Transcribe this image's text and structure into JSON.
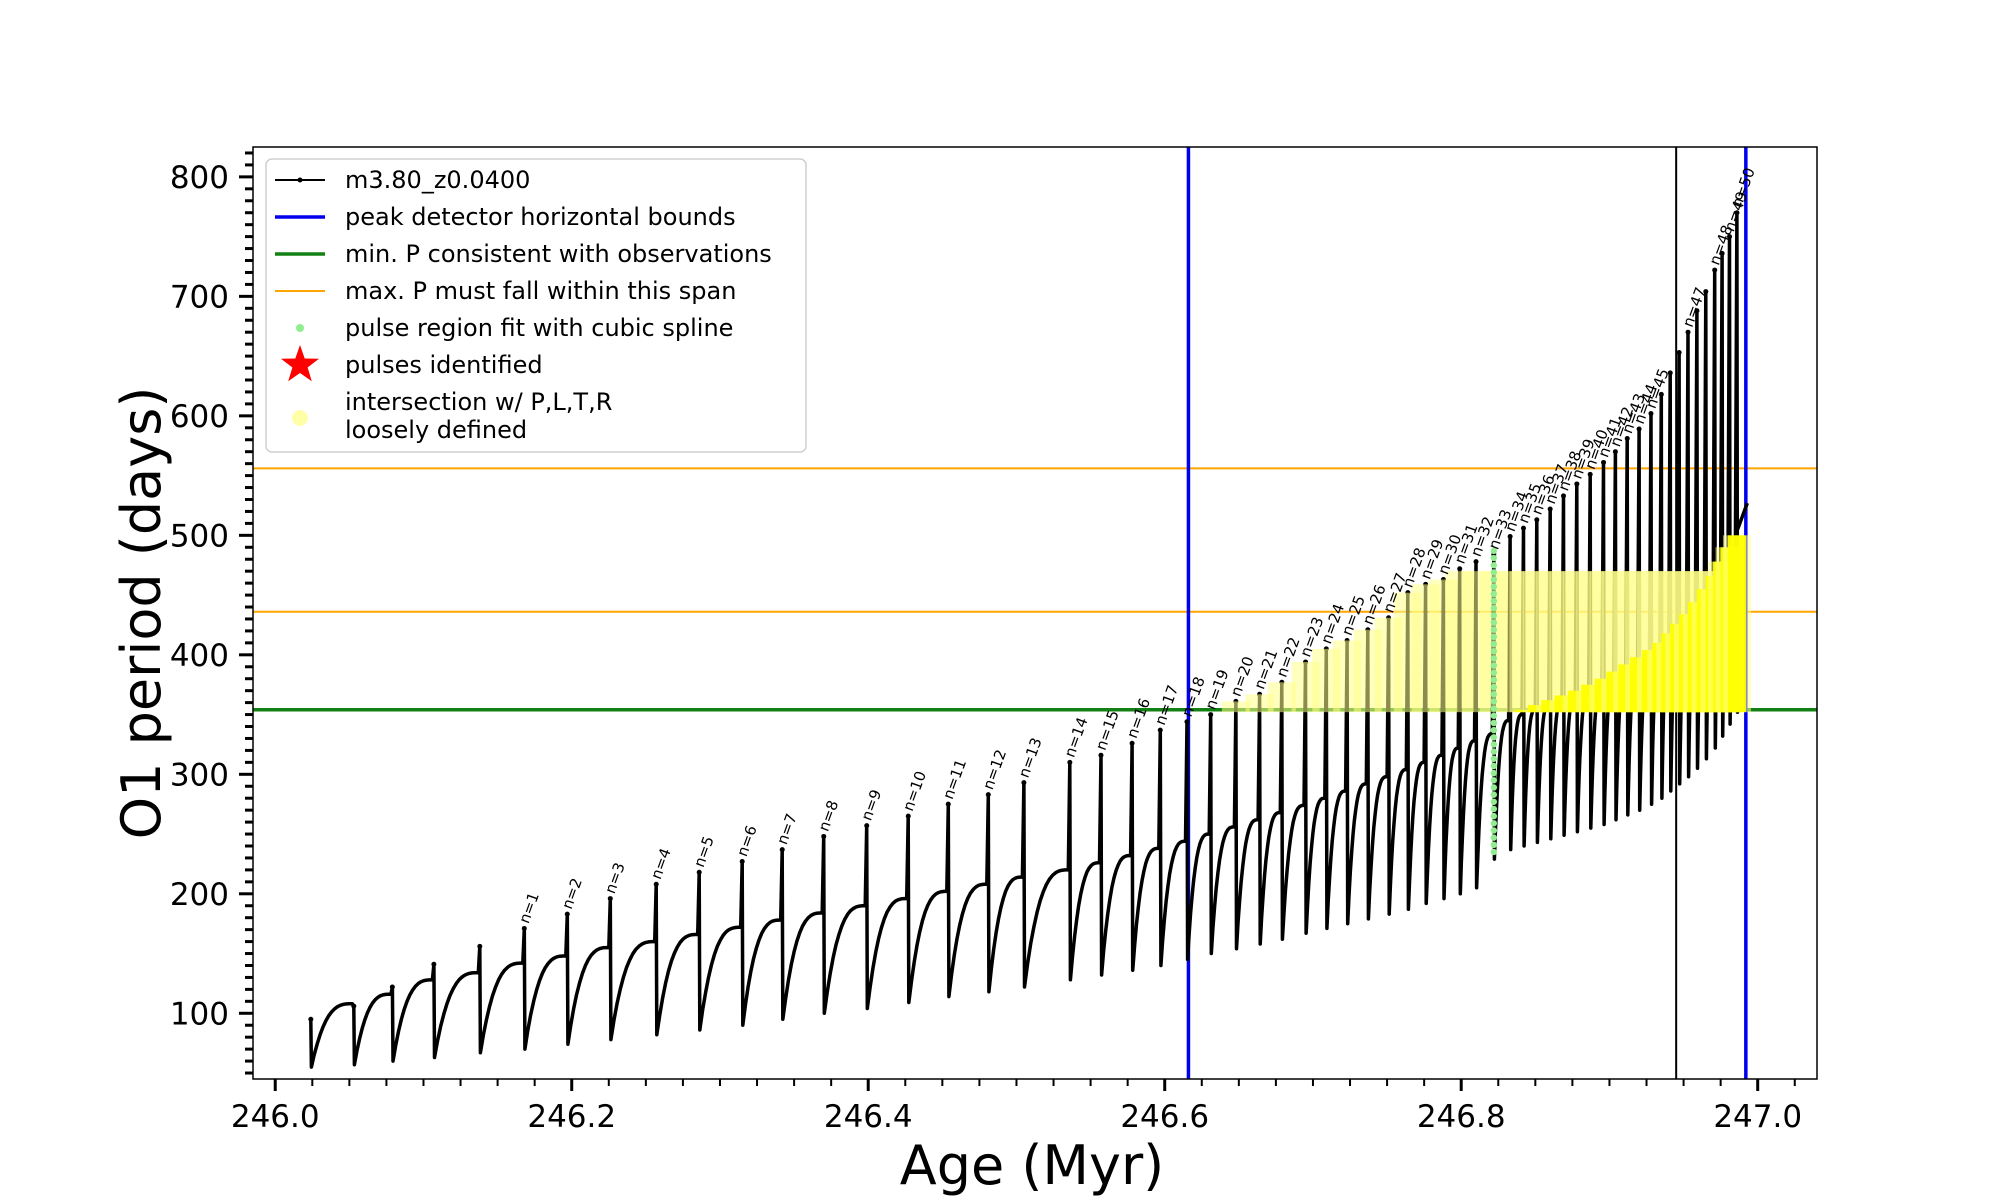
{
  "chart_data": {
    "type": "line",
    "title": "",
    "xlabel": "Age (Myr)",
    "ylabel": "O1 period (days)",
    "xlim": [
      245.985,
      247.04
    ],
    "ylim": [
      45,
      825
    ],
    "x_ticks": [
      246.0,
      246.2,
      246.4,
      246.6,
      246.8,
      247.0
    ],
    "x_tick_labels": [
      "246.0",
      "246.2",
      "246.4",
      "246.6",
      "246.8",
      "247.0"
    ],
    "y_ticks": [
      100,
      200,
      300,
      400,
      500,
      600,
      700,
      800
    ],
    "y_tick_labels": [
      "100",
      "200",
      "300",
      "400",
      "500",
      "600",
      "700",
      "800"
    ],
    "grid": false,
    "legend_position": "top-left",
    "legend": [
      {
        "label": "m3.80_z0.0400",
        "kind": "line-marker",
        "color": "#000000"
      },
      {
        "label": "peak detector horizontal bounds",
        "kind": "line",
        "color": "#0000ee"
      },
      {
        "label": "min. P consistent with observations",
        "kind": "line",
        "color": "#128012"
      },
      {
        "label": "max. P must fall within this span",
        "kind": "line",
        "color": "#ffa500"
      },
      {
        "label": "pulse region fit with cubic spline",
        "kind": "dot",
        "color": "#90ee90"
      },
      {
        "label": "pulses identified",
        "kind": "star",
        "color": "#ff0000"
      },
      {
        "label": "intersection w/ P,L,T,R\nloosely defined",
        "kind": "circle",
        "color": "#ffffa8"
      }
    ],
    "vertical_lines": [
      {
        "x": 246.616,
        "color": "#0000ee",
        "role": "peak detector horizontal bounds"
      },
      {
        "x": 246.992,
        "color": "#0000ee",
        "role": "peak detector horizontal bounds"
      },
      {
        "x": 246.945,
        "color": "#000000",
        "role": "series"
      }
    ],
    "horizontal_lines": [
      {
        "y": 354,
        "color": "#128012",
        "role": "min. P consistent with observations"
      },
      {
        "y": 436,
        "color": "#ffa500",
        "role": "max. P must fall within this span"
      },
      {
        "y": 556,
        "color": "#ffa500",
        "role": "max. P must fall within this span"
      }
    ],
    "spline_region": {
      "x": 246.822,
      "y_range": [
        235,
        490
      ],
      "color": "#90ee90"
    },
    "series": [
      {
        "name": "m3.80_z0.0400",
        "color": "#000000",
        "pulses": [
          {
            "label": "",
            "x": 246.024,
            "peak": 95,
            "min": 55,
            "rise_to": 108
          },
          {
            "label": "",
            "x": 246.053,
            "peak": 106,
            "min": 57,
            "rise_to": 116
          },
          {
            "label": "",
            "x": 246.079,
            "peak": 122,
            "min": 60,
            "rise_to": 128
          },
          {
            "label": "",
            "x": 246.107,
            "peak": 141,
            "min": 63,
            "rise_to": 134
          },
          {
            "label": "",
            "x": 246.138,
            "peak": 156,
            "min": 67,
            "rise_to": 142
          },
          {
            "label": "n=1",
            "x": 246.168,
            "peak": 171,
            "min": 70,
            "rise_to": 148
          },
          {
            "label": "n=2",
            "x": 246.197,
            "peak": 183,
            "min": 74,
            "rise_to": 155
          },
          {
            "label": "n=3",
            "x": 246.226,
            "peak": 196,
            "min": 78,
            "rise_to": 160
          },
          {
            "label": "n=4",
            "x": 246.257,
            "peak": 208,
            "min": 82,
            "rise_to": 166
          },
          {
            "label": "n=5",
            "x": 246.286,
            "peak": 218,
            "min": 86,
            "rise_to": 172
          },
          {
            "label": "n=6",
            "x": 246.315,
            "peak": 227,
            "min": 90,
            "rise_to": 178
          },
          {
            "label": "n=7",
            "x": 246.342,
            "peak": 237,
            "min": 95,
            "rise_to": 184
          },
          {
            "label": "n=8",
            "x": 246.37,
            "peak": 248,
            "min": 100,
            "rise_to": 190
          },
          {
            "label": "n=9",
            "x": 246.399,
            "peak": 257,
            "min": 104,
            "rise_to": 196
          },
          {
            "label": "n=10",
            "x": 246.427,
            "peak": 265,
            "min": 109,
            "rise_to": 202
          },
          {
            "label": "n=11",
            "x": 246.454,
            "peak": 275,
            "min": 114,
            "rise_to": 208
          },
          {
            "label": "n=12",
            "x": 246.481,
            "peak": 283,
            "min": 118,
            "rise_to": 214
          },
          {
            "label": "n=13",
            "x": 246.505,
            "peak": 293,
            "min": 122,
            "rise_to": 220
          },
          {
            "label": "n=14",
            "x": 246.536,
            "peak": 310,
            "min": 128,
            "rise_to": 226
          },
          {
            "label": "n=15",
            "x": 246.557,
            "peak": 316,
            "min": 132,
            "rise_to": 232
          },
          {
            "label": "n=16",
            "x": 246.578,
            "peak": 326,
            "min": 136,
            "rise_to": 238
          },
          {
            "label": "n=17",
            "x": 246.597,
            "peak": 337,
            "min": 140,
            "rise_to": 244
          },
          {
            "label": "n=18",
            "x": 246.615,
            "peak": 344,
            "min": 145,
            "rise_to": 250
          },
          {
            "label": "n=19",
            "x": 246.631,
            "peak": 350,
            "min": 150,
            "rise_to": 256
          },
          {
            "label": "n=20",
            "x": 246.648,
            "peak": 361,
            "min": 154,
            "rise_to": 262
          },
          {
            "label": "n=21",
            "x": 246.664,
            "peak": 367,
            "min": 158,
            "rise_to": 268
          },
          {
            "label": "n=22",
            "x": 246.679,
            "peak": 377,
            "min": 162,
            "rise_to": 274
          },
          {
            "label": "n=23",
            "x": 246.695,
            "peak": 394,
            "min": 167,
            "rise_to": 280
          },
          {
            "label": "n=24",
            "x": 246.709,
            "peak": 405,
            "min": 171,
            "rise_to": 286
          },
          {
            "label": "n=25",
            "x": 246.723,
            "peak": 412,
            "min": 175,
            "rise_to": 292
          },
          {
            "label": "n=26",
            "x": 246.737,
            "peak": 421,
            "min": 179,
            "rise_to": 298
          },
          {
            "label": "n=27",
            "x": 246.751,
            "peak": 431,
            "min": 183,
            "rise_to": 304
          },
          {
            "label": "n=28",
            "x": 246.764,
            "peak": 452,
            "min": 187,
            "rise_to": 310
          },
          {
            "label": "n=29",
            "x": 246.776,
            "peak": 459,
            "min": 192,
            "rise_to": 316
          },
          {
            "label": "n=30",
            "x": 246.788,
            "peak": 463,
            "min": 196,
            "rise_to": 322
          },
          {
            "label": "n=31",
            "x": 246.799,
            "peak": 472,
            "min": 200,
            "rise_to": 328
          },
          {
            "label": "n=32",
            "x": 246.81,
            "peak": 478,
            "min": 205,
            "rise_to": 334
          },
          {
            "label": "n=33",
            "x": 246.822,
            "peak": 484,
            "min": 229,
            "rise_to": 345
          },
          {
            "label": "n=34",
            "x": 246.833,
            "peak": 499,
            "min": 237,
            "rise_to": 350
          },
          {
            "label": "n=35",
            "x": 246.842,
            "peak": 506,
            "min": 240,
            "rise_to": 354
          },
          {
            "label": "n=36",
            "x": 246.851,
            "peak": 513,
            "min": 243,
            "rise_to": 358
          },
          {
            "label": "n=37",
            "x": 246.86,
            "peak": 522,
            "min": 246,
            "rise_to": 362
          },
          {
            "label": "n=38",
            "x": 246.869,
            "peak": 533,
            "min": 249,
            "rise_to": 366
          },
          {
            "label": "n=39",
            "x": 246.878,
            "peak": 543,
            "min": 252,
            "rise_to": 370
          },
          {
            "label": "n=40",
            "x": 246.887,
            "peak": 551,
            "min": 255,
            "rise_to": 375
          },
          {
            "label": "n=41",
            "x": 246.896,
            "peak": 561,
            "min": 258,
            "rise_to": 380
          },
          {
            "label": "n=42",
            "x": 246.904,
            "peak": 570,
            "min": 262,
            "rise_to": 386
          },
          {
            "label": "n=43",
            "x": 246.912,
            "peak": 581,
            "min": 266,
            "rise_to": 392
          },
          {
            "label": "n=44",
            "x": 246.92,
            "peak": 589,
            "min": 270,
            "rise_to": 398
          },
          {
            "label": "n=45",
            "x": 246.928,
            "peak": 602,
            "min": 275,
            "rise_to": 404
          },
          {
            "label": "",
            "x": 246.935,
            "peak": 618,
            "min": 280,
            "rise_to": 410
          },
          {
            "label": "",
            "x": 246.941,
            "peak": 636,
            "min": 286,
            "rise_to": 418
          },
          {
            "label": "",
            "x": 246.947,
            "peak": 653,
            "min": 292,
            "rise_to": 426
          },
          {
            "label": "n=47",
            "x": 246.953,
            "peak": 670,
            "min": 298,
            "rise_to": 434
          },
          {
            "label": "",
            "x": 246.959,
            "peak": 688,
            "min": 305,
            "rise_to": 444
          },
          {
            "label": "",
            "x": 246.965,
            "peak": 704,
            "min": 313,
            "rise_to": 455
          },
          {
            "label": "n=48",
            "x": 246.971,
            "peak": 722,
            "min": 322,
            "rise_to": 466
          },
          {
            "label": "",
            "x": 246.976,
            "peak": 736,
            "min": 332,
            "rise_to": 478
          },
          {
            "label": "n=49",
            "x": 246.981,
            "peak": 750,
            "min": 342,
            "rise_to": 490
          },
          {
            "label": "n=50",
            "x": 246.986,
            "peak": 770,
            "min": 352,
            "rise_to": 500
          }
        ],
        "tail": {
          "x": [
            246.986,
            246.993
          ],
          "y": [
            500,
            527
          ]
        }
      }
    ]
  }
}
